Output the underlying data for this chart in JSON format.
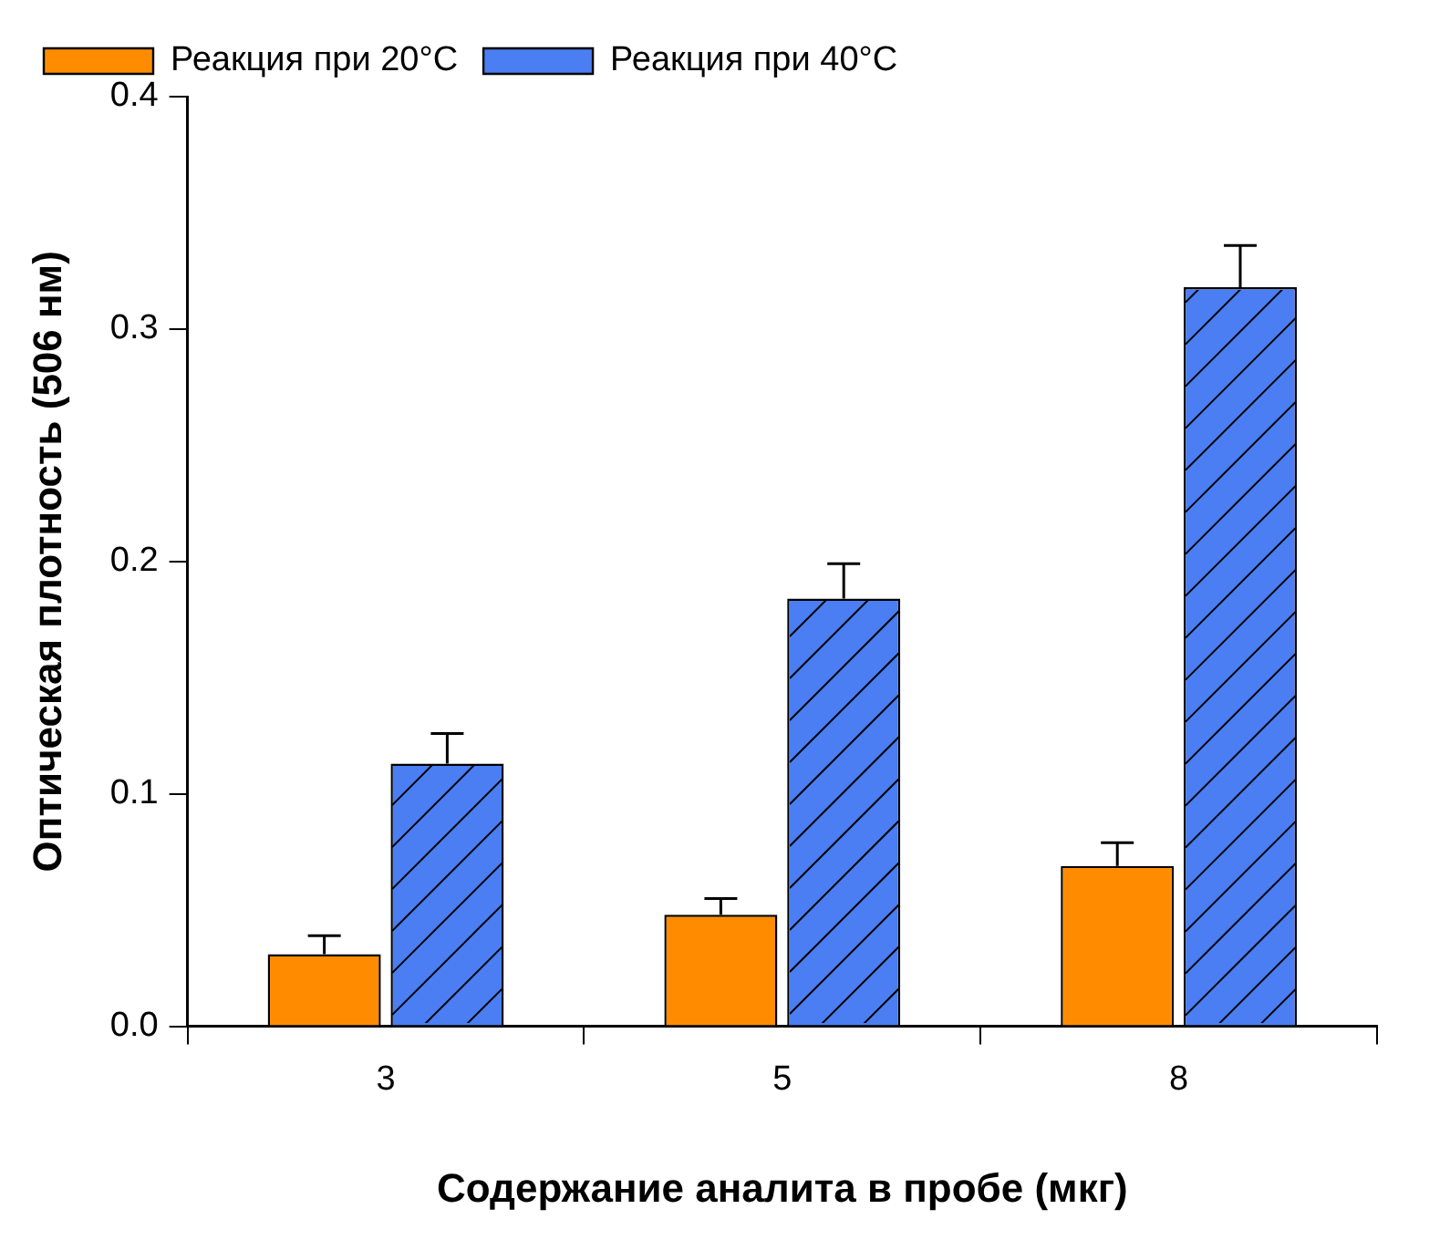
{
  "chart_data": {
    "type": "bar",
    "xlabel": "Содержание аналита в пробе (мкг)",
    "ylabel": "Оптическая плотность (506 нм)",
    "categories": [
      "3",
      "5",
      "8"
    ],
    "series": [
      {
        "name": "Реакция при 20°C",
        "color": "#ff8c00",
        "values": [
          0.031,
          0.048,
          0.069
        ],
        "errors": [
          [
            0.031,
            0.039
          ],
          [
            0.048,
            0.055
          ],
          [
            0.069,
            0.079
          ]
        ]
      },
      {
        "name": "Реакция при 40°C",
        "color": "#4a7ef2",
        "values": [
          0.113,
          0.184,
          0.318
        ],
        "errors": [
          [
            0.113,
            0.126
          ],
          [
            0.184,
            0.199
          ],
          [
            0.318,
            0.336
          ]
        ]
      }
    ],
    "ylim": [
      0,
      0.4
    ],
    "yticks": [
      {
        "value": 0,
        "label": "0.0"
      },
      {
        "value": 0.1,
        "label": "0.1"
      },
      {
        "value": 0.2,
        "label": "0.2"
      },
      {
        "value": 0.3,
        "label": "0.3"
      },
      {
        "value": 0.4,
        "label": "0.4"
      }
    ],
    "grid": false,
    "legend": "top left"
  }
}
